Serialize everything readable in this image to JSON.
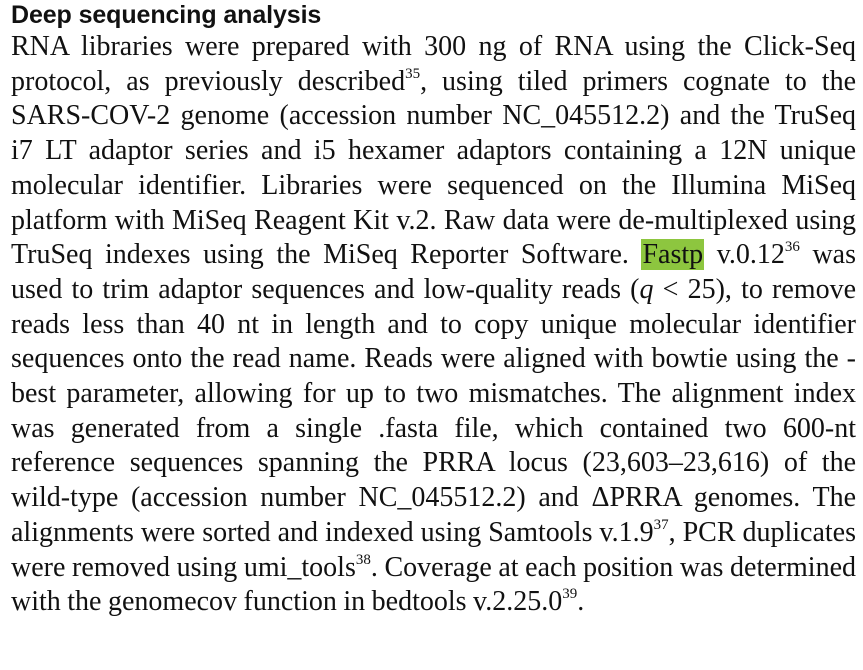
{
  "section": {
    "heading": "Deep sequencing analysis"
  },
  "paragraph": {
    "s1": "RNA libraries were prepared with 300 ng of RNA using the Click-Seq protocol, as previously described",
    "ref35": "35",
    "s2": ", using tiled primers cognate to the SARS-COV-2 genome (accession number NC_045512.2) and the TruSeq i7 LT adaptor series and i5 hexamer adaptors containing a 12N unique molecular identifier. Libraries were sequenced on the Illumina MiSeq platform with MiSeq Reagent Kit v.2. Raw data were de-multiplexed using TruSeq indexes using the MiSeq Reporter Software. ",
    "fastp": "Fastp",
    "s3": " v.0.12",
    "ref36": "36",
    "s4": " was used to trim adaptor sequences and low-quality reads (",
    "q": "q",
    "s5": " < 25), to remove reads less than 40 nt in length and to copy unique molecular identifier sequences onto the read name. Reads were aligned with bowtie using the -best parameter, allowing for up to two mismatches. The alignment index was generated from a single .fasta file, which contained two 600-nt reference sequences spanning the PRRA locus (23,603–23,616) of the wild-type (accession number NC_045512.2) and ΔPRRA genomes. The alignments were sorted and indexed using Samtools v.1.9",
    "ref37": "37",
    "s6": ", PCR duplicates were removed using umi_tools",
    "ref38": "38",
    "s7": ". Coverage at each position was determined with the genomecov function in bedtools v.2.25.0",
    "ref39": "39",
    "s8": "."
  },
  "colors": {
    "highlight": "#8dc63f",
    "text": "#111111"
  }
}
